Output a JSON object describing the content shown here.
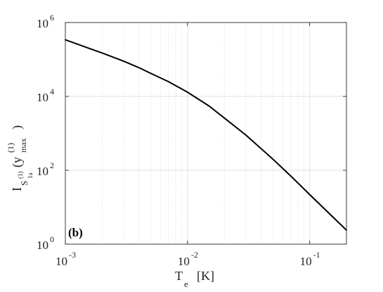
{
  "chart_data": {
    "type": "line",
    "panel_label": "(b)",
    "x_scale": "log",
    "y_scale": "log",
    "xlim": [
      0.001,
      0.2
    ],
    "ylim": [
      1,
      1000000
    ],
    "x_ticks": [
      {
        "value": 0.001,
        "base": "10",
        "exp": "-3"
      },
      {
        "value": 0.01,
        "base": "10",
        "exp": "-2"
      },
      {
        "value": 0.1,
        "base": "10",
        "exp": "-1"
      }
    ],
    "y_ticks": [
      {
        "value": 1,
        "base": "10",
        "exp": "0"
      },
      {
        "value": 100,
        "base": "10",
        "exp": "2"
      },
      {
        "value": 10000,
        "base": "10",
        "exp": "4"
      },
      {
        "value": 1000000,
        "base": "10",
        "exp": "6"
      }
    ],
    "xlabel": {
      "main": "T",
      "sub": "e",
      "unit": "[K]"
    },
    "ylabel": {
      "main": "I",
      "sub": "S",
      "sub_sup": "(1)",
      "sub_sub": "1a",
      "arg_open": "(y",
      "arg_sup": "(1)",
      "arg_sub": "max",
      "arg_close": ")"
    },
    "grid": {
      "major": true,
      "minor_x": true
    },
    "series": [
      {
        "color": "#000000",
        "x": [
          0.001,
          0.0015,
          0.002,
          0.003,
          0.004,
          0.005,
          0.007,
          0.01,
          0.015,
          0.02,
          0.03,
          0.05,
          0.07,
          0.1,
          0.15,
          0.2
        ],
        "y": [
          340000,
          210000,
          150000,
          90000,
          60000,
          42000,
          25000,
          13000,
          5500,
          2600,
          900,
          200,
          70,
          22,
          6,
          2.4
        ]
      }
    ]
  }
}
